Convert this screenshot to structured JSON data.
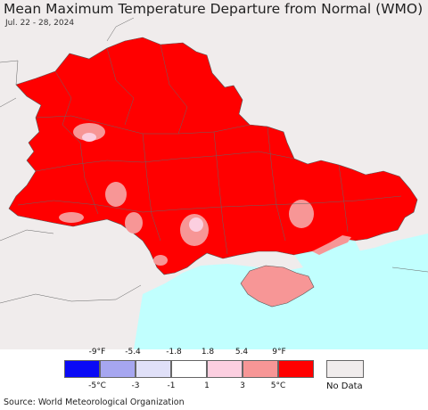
{
  "title": "Mean Maximum Temperature Departure from Normal (WMO)",
  "date_range": "Jul. 22 - 28, 2024",
  "legend": {
    "fahrenheit_ticks": [
      "-9°F",
      "-5.4",
      "-1.8",
      "1.8",
      "5.4",
      "9°F"
    ],
    "celsius_ticks": [
      "-5°C",
      "-3",
      "-1",
      "1",
      "3",
      "5°C"
    ],
    "colors": [
      "#0a0af5",
      "#a6a6f0",
      "#e0e0f8",
      "#ffffff",
      "#fccfe0",
      "#f79696",
      "#ff0000"
    ],
    "no_data_label": "No Data",
    "no_data_color": "#f0ecec"
  },
  "map": {
    "region_color": "#ff0000",
    "warm_patch_color": "#f79696",
    "mild_patch_color": "#fccfe0",
    "sea_color": "#c1fffe",
    "land_outside_color": "#f0ecec"
  },
  "source": "Source: World Meteorological Organization"
}
